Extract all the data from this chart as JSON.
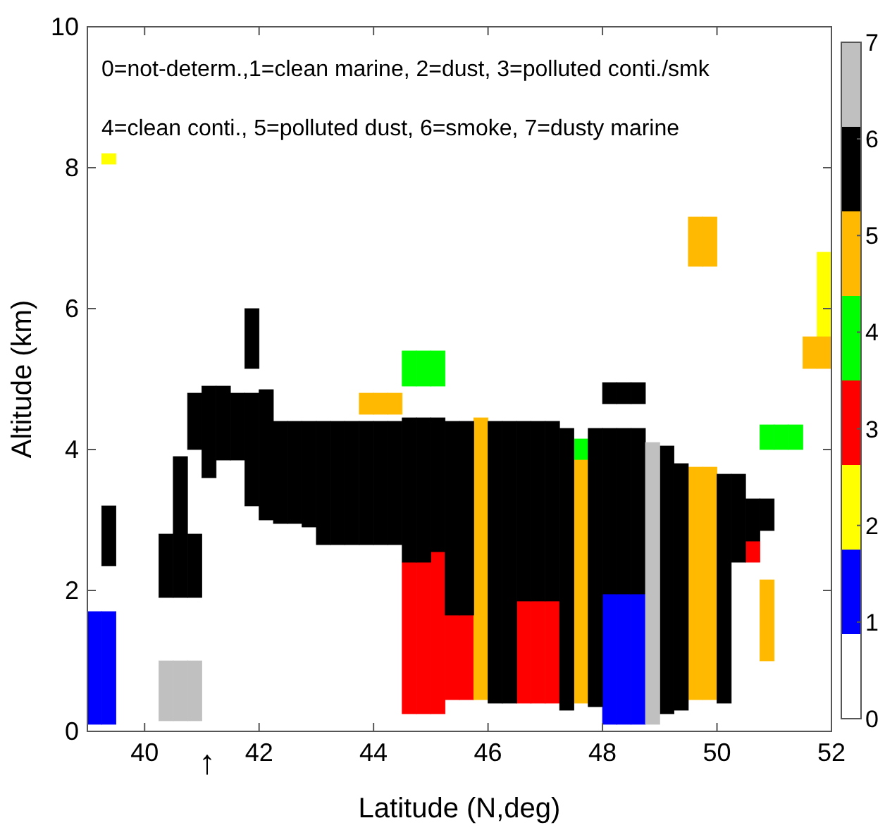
{
  "chart_data": {
    "type": "bar",
    "xlabel": "Latitude (N,deg)",
    "ylabel": "Altitude (km)",
    "annotations": [
      "0=not-determ.,1=clean marine, 2=dust, 3=polluted conti./smk",
      "4=clean conti., 5=polluted dust, 6=smoke, 7=dusty marine",
      "↑"
    ],
    "xlim": [
      39,
      52
    ],
    "xticks": [
      40,
      42,
      44,
      46,
      48,
      50,
      52
    ],
    "ylim": [
      0,
      10
    ],
    "yticks": [
      0,
      2,
      4,
      6,
      8,
      10
    ],
    "clim": [
      0,
      7
    ],
    "cticks": [
      0,
      1,
      2,
      3,
      4,
      5,
      6,
      7
    ],
    "colors": [
      "#ffffff",
      "#0000ff",
      "#ffff00",
      "#ff0000",
      "#00ff00",
      "#ffb900",
      "#000000",
      "#c0c0c0"
    ],
    "x": [
      39.125,
      39.375,
      40.375,
      40.625,
      40.875,
      41.125,
      41.375,
      41.625,
      41.875,
      42.125,
      42.375,
      42.625,
      42.875,
      43.125,
      43.375,
      43.625,
      43.875,
      44.125,
      44.375,
      44.625,
      44.875,
      45.125,
      45.375,
      45.625,
      45.875,
      46.125,
      46.375,
      46.625,
      46.875,
      47.125,
      47.375,
      47.625,
      47.875,
      48.125,
      48.375,
      48.625,
      48.875,
      49.125,
      49.375,
      49.625,
      49.875,
      50.125,
      50.375,
      50.625,
      50.875,
      51.125,
      51.375,
      51.625,
      51.875
    ],
    "series": [
      {
        "color": "#0000ff",
        "base": [
          0.1,
          0.1,
          null,
          null,
          null,
          null,
          null,
          null,
          null,
          null,
          null,
          null,
          null,
          null,
          null,
          null,
          null,
          null,
          null,
          null,
          null,
          null,
          null,
          null,
          null,
          null,
          null,
          null,
          null,
          null,
          null,
          null,
          null,
          0.1,
          0.1,
          0.1,
          null,
          null,
          null,
          null,
          null,
          null,
          null,
          null,
          null,
          null,
          null,
          null,
          null
        ],
        "values": [
          1.6,
          1.6,
          null,
          null,
          null,
          null,
          null,
          null,
          null,
          null,
          null,
          null,
          null,
          null,
          null,
          null,
          null,
          null,
          null,
          null,
          null,
          null,
          null,
          null,
          null,
          null,
          null,
          null,
          null,
          null,
          null,
          null,
          null,
          1.85,
          1.85,
          1.85,
          null,
          null,
          null,
          null,
          null,
          null,
          null,
          null,
          null,
          null,
          null,
          null,
          null
        ]
      },
      {
        "color": "#ffff00",
        "base": [
          null,
          8.05,
          null,
          null,
          null,
          null,
          null,
          null,
          null,
          null,
          null,
          null,
          null,
          null,
          null,
          null,
          null,
          null,
          null,
          null,
          null,
          null,
          null,
          null,
          null,
          null,
          null,
          null,
          null,
          null,
          null,
          null,
          null,
          null,
          null,
          null,
          null,
          null,
          null,
          null,
          null,
          null,
          null,
          null,
          null,
          null,
          null,
          null,
          5.6
        ],
        "values": [
          null,
          0.15,
          null,
          null,
          null,
          null,
          null,
          null,
          null,
          null,
          null,
          null,
          null,
          null,
          null,
          null,
          null,
          null,
          null,
          null,
          null,
          null,
          null,
          null,
          null,
          null,
          null,
          null,
          null,
          null,
          null,
          null,
          null,
          null,
          null,
          null,
          null,
          null,
          null,
          null,
          null,
          null,
          null,
          null,
          null,
          null,
          null,
          null,
          1.2
        ]
      },
      {
        "color": "#ff0000",
        "base": [
          null,
          null,
          null,
          null,
          null,
          null,
          null,
          null,
          null,
          null,
          null,
          null,
          null,
          null,
          null,
          null,
          null,
          null,
          null,
          0.25,
          0.25,
          0.25,
          0.45,
          0.45,
          null,
          null,
          null,
          0.4,
          0.4,
          0.4,
          null,
          null,
          null,
          null,
          null,
          null,
          null,
          null,
          null,
          null,
          null,
          null,
          null,
          2.4,
          null,
          null,
          null,
          null,
          null
        ],
        "values": [
          null,
          null,
          null,
          null,
          null,
          null,
          null,
          null,
          null,
          null,
          null,
          null,
          null,
          null,
          null,
          null,
          null,
          null,
          null,
          2.15,
          2.15,
          2.3,
          1.2,
          1.2,
          null,
          null,
          null,
          1.45,
          1.45,
          1.45,
          null,
          null,
          null,
          null,
          null,
          null,
          null,
          null,
          null,
          null,
          null,
          null,
          null,
          0.3,
          null,
          null,
          null,
          null,
          null
        ]
      },
      {
        "color": "#00ff00",
        "base": [
          null,
          null,
          null,
          null,
          null,
          null,
          null,
          null,
          null,
          null,
          null,
          null,
          null,
          null,
          null,
          null,
          null,
          null,
          null,
          4.9,
          4.9,
          4.9,
          null,
          null,
          null,
          null,
          null,
          null,
          null,
          null,
          null,
          3.85,
          null,
          null,
          null,
          null,
          null,
          null,
          null,
          null,
          null,
          null,
          null,
          null,
          4.0,
          4.0,
          4.0,
          null,
          null
        ],
        "values": [
          null,
          null,
          null,
          null,
          null,
          null,
          null,
          null,
          null,
          null,
          null,
          null,
          null,
          null,
          null,
          null,
          null,
          null,
          null,
          0.5,
          0.5,
          0.5,
          null,
          null,
          null,
          null,
          null,
          null,
          null,
          null,
          null,
          0.3,
          null,
          null,
          null,
          null,
          null,
          null,
          null,
          null,
          null,
          null,
          null,
          null,
          0.35,
          0.35,
          0.35,
          null,
          null
        ]
      },
      {
        "color": "#ffb900",
        "base": [
          null,
          null,
          null,
          null,
          null,
          null,
          null,
          null,
          null,
          null,
          null,
          null,
          null,
          null,
          null,
          null,
          4.5,
          4.5,
          4.5,
          null,
          null,
          null,
          null,
          null,
          0.45,
          null,
          null,
          null,
          null,
          null,
          null,
          0.4,
          null,
          null,
          null,
          null,
          null,
          null,
          null,
          0.45,
          0.45,
          null,
          null,
          null,
          1.0,
          null,
          null,
          5.15,
          5.15
        ],
        "values": [
          null,
          null,
          null,
          null,
          null,
          null,
          null,
          null,
          null,
          null,
          null,
          null,
          null,
          null,
          null,
          null,
          0.3,
          0.3,
          0.3,
          null,
          null,
          null,
          null,
          null,
          4.0,
          null,
          null,
          null,
          null,
          null,
          null,
          3.45,
          null,
          null,
          null,
          null,
          null,
          null,
          null,
          3.3,
          3.3,
          null,
          null,
          null,
          1.15,
          null,
          null,
          0.45,
          0.45
        ]
      },
      {
        "color": "#ffb900",
        "base": [
          null,
          null,
          null,
          null,
          null,
          null,
          null,
          null,
          null,
          null,
          null,
          null,
          null,
          null,
          null,
          null,
          null,
          null,
          null,
          null,
          null,
          null,
          null,
          null,
          null,
          null,
          null,
          null,
          null,
          null,
          null,
          null,
          null,
          null,
          null,
          null,
          null,
          null,
          null,
          6.6,
          6.6,
          null,
          null,
          null,
          null,
          null,
          null,
          null,
          null
        ],
        "values": [
          null,
          null,
          null,
          null,
          null,
          null,
          null,
          null,
          null,
          null,
          null,
          null,
          null,
          null,
          null,
          null,
          null,
          null,
          null,
          null,
          null,
          null,
          null,
          null,
          null,
          null,
          null,
          null,
          null,
          null,
          null,
          null,
          null,
          null,
          null,
          null,
          null,
          null,
          null,
          0.7,
          0.7,
          null,
          null,
          null,
          null,
          null,
          null,
          null,
          null
        ]
      },
      {
        "color": "#000000",
        "base": [
          null,
          2.35,
          1.9,
          1.9,
          1.9,
          3.6,
          3.85,
          3.85,
          3.2,
          3.0,
          2.95,
          2.95,
          2.9,
          2.65,
          2.65,
          2.65,
          2.65,
          2.65,
          2.65,
          2.4,
          2.4,
          2.55,
          1.65,
          1.65,
          null,
          0.4,
          0.4,
          1.85,
          1.85,
          1.85,
          0.3,
          null,
          0.35,
          1.95,
          1.95,
          1.95,
          null,
          0.25,
          0.3,
          null,
          null,
          0.4,
          2.4,
          2.7,
          2.85,
          null,
          null,
          null,
          null
        ],
        "values": [
          null,
          0.85,
          0.9,
          2.0,
          0.9,
          1.3,
          1.05,
          0.95,
          1.6,
          1.85,
          1.45,
          1.45,
          1.5,
          1.75,
          1.75,
          1.75,
          1.75,
          1.75,
          1.75,
          2.05,
          2.05,
          1.9,
          2.75,
          2.75,
          null,
          4.0,
          4.0,
          2.55,
          2.55,
          2.55,
          4.0,
          null,
          3.95,
          2.35,
          2.35,
          2.35,
          null,
          3.8,
          3.5,
          null,
          null,
          3.25,
          1.25,
          0.6,
          0.45,
          null,
          null,
          null,
          null
        ]
      },
      {
        "color": "#000000",
        "base": [
          null,
          null,
          null,
          null,
          4.0,
          null,
          null,
          null,
          5.15,
          null,
          null,
          null,
          null,
          null,
          null,
          null,
          null,
          null,
          null,
          null,
          null,
          null,
          null,
          null,
          null,
          null,
          null,
          null,
          null,
          null,
          null,
          null,
          null,
          4.65,
          4.65,
          4.65,
          null,
          null,
          null,
          null,
          null,
          null,
          null,
          null,
          null,
          null,
          null,
          null,
          null
        ],
        "values": [
          null,
          null,
          null,
          null,
          0.8,
          null,
          null,
          null,
          0.85,
          null,
          null,
          null,
          null,
          null,
          null,
          null,
          null,
          null,
          null,
          null,
          null,
          null,
          null,
          null,
          null,
          null,
          null,
          null,
          null,
          null,
          null,
          null,
          null,
          0.3,
          0.3,
          0.3,
          null,
          null,
          null,
          null,
          null,
          null,
          null,
          null,
          null,
          null,
          null,
          null,
          null
        ]
      },
      {
        "color": "#c0c0c0",
        "base": [
          null,
          null,
          0.15,
          0.15,
          0.15,
          null,
          null,
          null,
          null,
          null,
          null,
          null,
          null,
          null,
          null,
          null,
          null,
          null,
          null,
          null,
          null,
          null,
          null,
          null,
          null,
          null,
          null,
          null,
          null,
          null,
          null,
          null,
          null,
          null,
          null,
          null,
          0.1,
          null,
          null,
          null,
          null,
          null,
          null,
          null,
          null,
          null,
          null,
          null,
          null
        ],
        "values": [
          null,
          null,
          0.85,
          0.85,
          0.85,
          null,
          null,
          null,
          null,
          null,
          null,
          null,
          null,
          null,
          null,
          null,
          null,
          null,
          null,
          null,
          null,
          null,
          null,
          null,
          null,
          null,
          null,
          null,
          null,
          null,
          null,
          null,
          null,
          null,
          null,
          null,
          4.0,
          null,
          null,
          null,
          null,
          null,
          null,
          null,
          null,
          null,
          null,
          null,
          null
        ]
      }
    ]
  }
}
